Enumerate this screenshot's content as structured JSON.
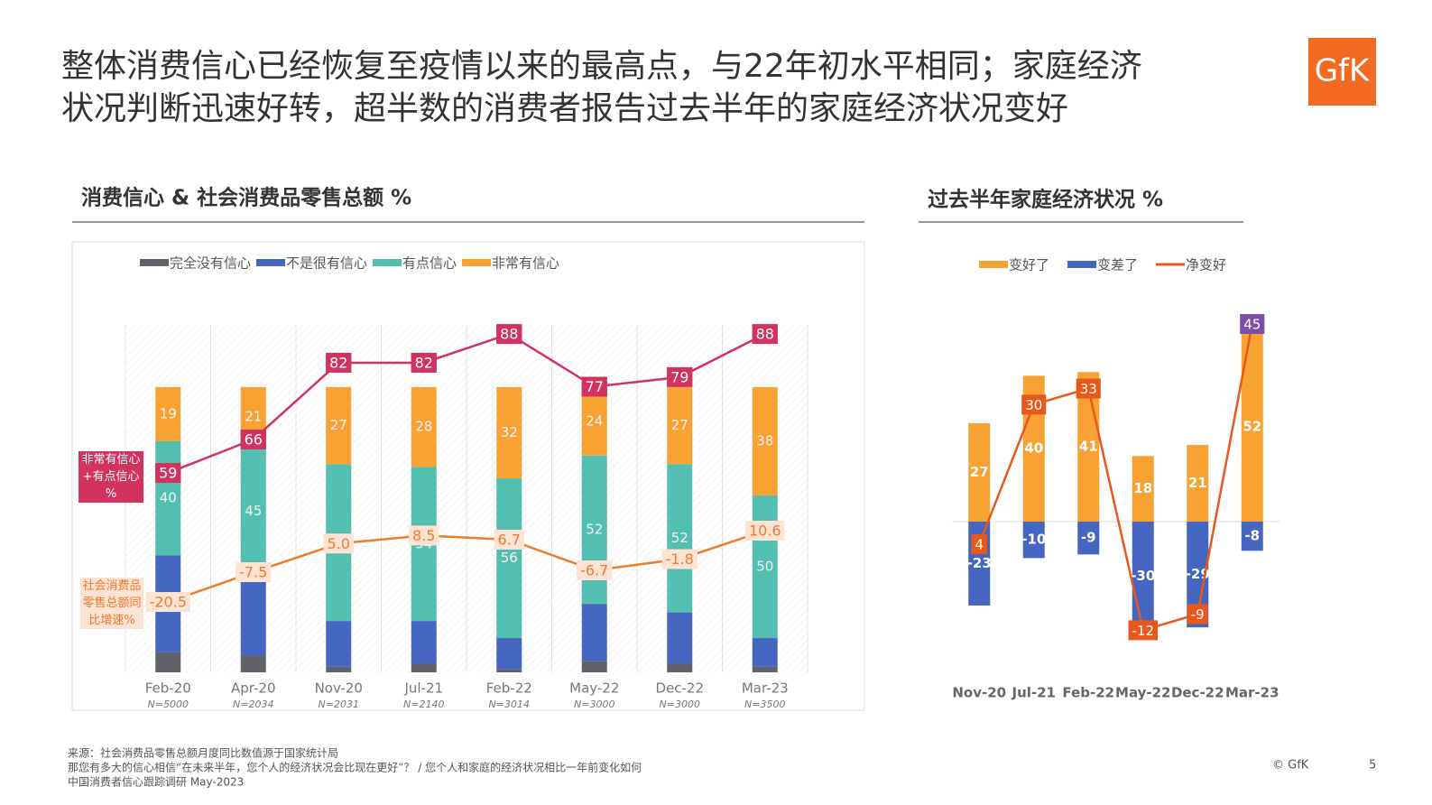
{
  "header": {
    "title": [
      "整体消费信心已经恢复至疫情以来的最高点，与22年初水平相同；家庭经济",
      "状况判断迅速好转，超半数的消费者报告过去半年的家庭经济状况变好"
    ],
    "logo": "GfK"
  },
  "chart_data": [
    {
      "type": "bar",
      "title": "消费信心 & 社会消费品零售总额 %",
      "stacked": true,
      "categories": [
        "Feb-20",
        "Apr-20",
        "Nov-20",
        "Jul-21",
        "Feb-22",
        "May-22",
        "Dec-22",
        "Mar-23"
      ],
      "sample_sizes": [
        "N=5000",
        "N=2034",
        "N=2031",
        "N=2140",
        "N=3014",
        "N=3000",
        "N=3000",
        "N=3500"
      ],
      "ylim": [
        0,
        121.8
      ],
      "y2lim": [
        17.4,
        89.9
      ],
      "y3lim": [
        -51.2,
        100.4
      ],
      "series": [
        {
          "name": "完全没有信心",
          "color": "#5f6369",
          "values": [
            7,
            6,
            2,
            3,
            1,
            4,
            3,
            2
          ]
        },
        {
          "name": "不是很有信心",
          "color": "#4466c0",
          "values": [
            34,
            28,
            16,
            15,
            11,
            20,
            18,
            10
          ]
        },
        {
          "name": "有点信心",
          "color": "#52bfb0",
          "values": [
            40,
            45,
            55,
            54,
            56,
            52,
            52,
            50
          ],
          "labels": true
        },
        {
          "name": "非常有信心",
          "color": "#f8a234",
          "values": [
            19,
            21,
            27,
            28,
            32,
            24,
            27,
            38
          ],
          "labels": true
        },
        {
          "name": "非常有信心+有点信心 %",
          "type": "line",
          "axis": "y2",
          "color": "#d1325e",
          "values": [
            59,
            66,
            82,
            82,
            88,
            77,
            79,
            88
          ]
        },
        {
          "name": "社会消费品零售总额同比增速%",
          "type": "line",
          "axis": "y3",
          "color": "#f07a2e",
          "values": [
            -20.5,
            -7.5,
            5.0,
            8.5,
            6.7,
            -6.7,
            -1.8,
            10.6
          ],
          "value_labels": [
            "-20.5",
            "-7.5",
            "5.0",
            "8.5",
            "6.7",
            "-6.7",
            "-1.8",
            "10.6"
          ]
        }
      ]
    },
    {
      "type": "bar",
      "title": "过去半年家庭经济状况 %",
      "categories": [
        "Nov-20",
        "Jul-21",
        "Feb-22",
        "May-22",
        "Dec-22",
        "Mar-23"
      ],
      "ylim": [
        -40.1,
        58.9
      ],
      "y2lim": [
        -19,
        48.2
      ],
      "series": [
        {
          "name": "变好了",
          "color": "#f8a234",
          "values": [
            27,
            40,
            41,
            18,
            21,
            52
          ]
        },
        {
          "name": "变差了",
          "color": "#4466c0",
          "values": [
            -23,
            -10,
            -9,
            -30,
            -29,
            -8
          ]
        },
        {
          "name": "净变好",
          "type": "line",
          "axis": "y2",
          "color": "#e8581c",
          "values": [
            4,
            30,
            33,
            -12,
            -9,
            45
          ],
          "point_colors": [
            "#e8581c",
            "#e8581c",
            "#e8581c",
            "#e8581c",
            "#e8581c",
            "#7b4fa8"
          ]
        }
      ]
    }
  ],
  "footer": {
    "notes": [
      "来源：社会消费品零售总额月度同比数值源于国家统计局",
      "那您有多大的信心相信“在未来半年，您个人的经济状况会比现在更好”？ / 您个人和家庭的经济状况相比一年前变化如何",
      "中国消费者信心跟踪调研 May-2023"
    ],
    "copyright": "© GfK",
    "page": "5"
  }
}
